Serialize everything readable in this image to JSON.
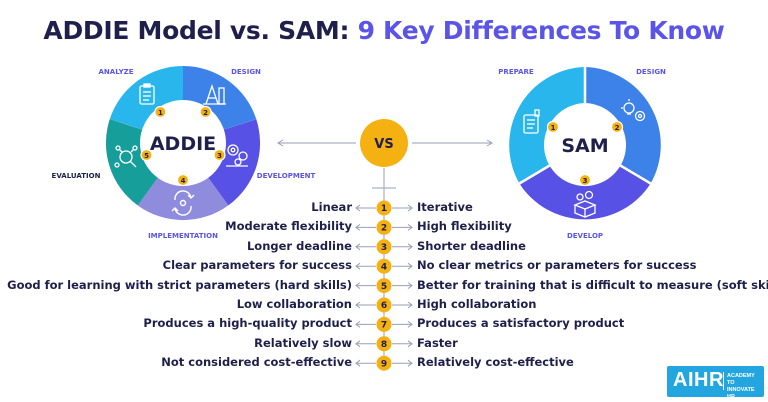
{
  "title": {
    "part1": "ADDIE Model vs. SAM:",
    "part2": "9 Key Differences To Know"
  },
  "addie": {
    "center_label": "ADDIE",
    "phases": [
      {
        "num": "1",
        "label": "ANALYZE",
        "icon": "clipboard-icon",
        "color": "#29b6ec"
      },
      {
        "num": "2",
        "label": "DESIGN",
        "icon": "design-tools-icon",
        "color": "#3d82e8"
      },
      {
        "num": "3",
        "label": "DEVELOPMENT",
        "icon": "gears-icon",
        "color": "#5751e6"
      },
      {
        "num": "4",
        "label": "IMPLEMENTATION",
        "icon": "cycle-icon",
        "color": "#8f8cde"
      },
      {
        "num": "5",
        "label": "EVALUATION",
        "icon": "network-search-icon",
        "color": "#159e9a"
      }
    ]
  },
  "sam": {
    "center_label": "SAM",
    "phases": [
      {
        "num": "1",
        "label": "PREPARE",
        "icon": "document-icon",
        "color": "#29b6ec"
      },
      {
        "num": "2",
        "label": "DESIGN",
        "icon": "lightbulb-gear-icon",
        "color": "#3d82e8"
      },
      {
        "num": "3",
        "label": "DEVELOP",
        "icon": "box-gears-icon",
        "color": "#5751e6"
      }
    ]
  },
  "vs_label": "VS",
  "comparisons": [
    {
      "num": "1",
      "addie": "Linear",
      "sam": "Iterative"
    },
    {
      "num": "2",
      "addie": "Moderate flexibility",
      "sam": "High flexibility"
    },
    {
      "num": "3",
      "addie": "Longer deadline",
      "sam": "Shorter deadline"
    },
    {
      "num": "4",
      "addie": "Clear parameters for success",
      "sam": "No clear metrics or parameters for success"
    },
    {
      "num": "5",
      "addie": "Good for learning with strict parameters (hard skills)",
      "sam": "Better for training that is difficult to measure (soft skills)"
    },
    {
      "num": "6",
      "addie": "Low collaboration",
      "sam": "High collaboration"
    },
    {
      "num": "7",
      "addie": "Produces a high-quality product",
      "sam": "Produces a satisfactory product"
    },
    {
      "num": "8",
      "addie": "Relatively slow",
      "sam": "Faster"
    },
    {
      "num": "9",
      "addie": "Not considered cost-effective",
      "sam": "Relatively cost-effective"
    }
  ],
  "logo": {
    "name": "AIHR",
    "tagline": "ACADEMY TO INNOVATE HR"
  },
  "colors": {
    "navy": "#1e1f4b",
    "violet": "#5b54e8",
    "badge": "#f5b112",
    "logo_bg": "#23a6e0"
  }
}
